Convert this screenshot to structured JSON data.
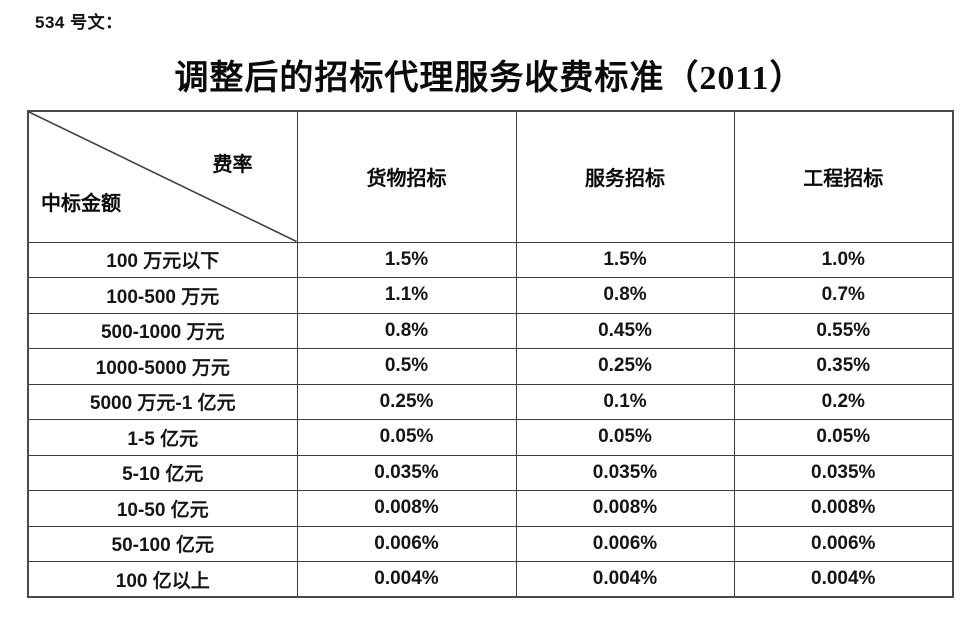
{
  "doc_label": "534 号文：",
  "title": "调整后的招标代理服务收费标准（2011）",
  "colors": {
    "text": "#000000",
    "border": "#3f3f3f",
    "background": "#ffffff"
  },
  "table": {
    "corner": {
      "top_right": "费率",
      "bottom_left": "中标金额"
    },
    "columns": [
      "货物招标",
      "服务招标",
      "工程招标"
    ],
    "rows": [
      {
        "label": "100 万元以下",
        "values": [
          "1.5%",
          "1.5%",
          "1.0%"
        ]
      },
      {
        "label": "100-500 万元",
        "values": [
          "1.1%",
          "0.8%",
          "0.7%"
        ]
      },
      {
        "label": "500-1000 万元",
        "values": [
          "0.8%",
          "0.45%",
          "0.55%"
        ]
      },
      {
        "label": "1000-5000 万元",
        "values": [
          "0.5%",
          "0.25%",
          "0.35%"
        ]
      },
      {
        "label": "5000 万元-1 亿元",
        "values": [
          "0.25%",
          "0.1%",
          "0.2%"
        ]
      },
      {
        "label": "1-5 亿元",
        "values": [
          "0.05%",
          "0.05%",
          "0.05%"
        ]
      },
      {
        "label": "5-10 亿元",
        "values": [
          "0.035%",
          "0.035%",
          "0.035%"
        ]
      },
      {
        "label": "10-50 亿元",
        "values": [
          "0.008%",
          "0.008%",
          "0.008%"
        ]
      },
      {
        "label": "50-100 亿元",
        "values": [
          "0.006%",
          "0.006%",
          "0.006%"
        ]
      },
      {
        "label": "100 亿以上",
        "values": [
          "0.004%",
          "0.004%",
          "0.004%"
        ]
      }
    ]
  }
}
